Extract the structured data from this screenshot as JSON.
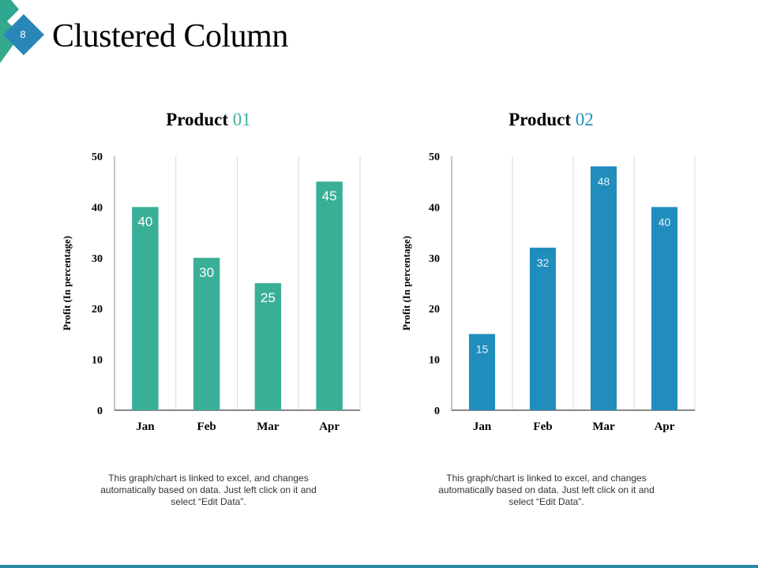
{
  "slide": {
    "number": "8",
    "title": "Clustered Column",
    "accent_colors": [
      "#35b09a",
      "#2190c0",
      "#2a8aa6"
    ]
  },
  "chart_data": [
    {
      "type": "bar",
      "title": "Product",
      "title_number": "01",
      "title_number_color": "#3fb3a1",
      "categories": [
        "Jan",
        "Feb",
        "Mar",
        "Apr"
      ],
      "values": [
        40,
        30,
        25,
        45
      ],
      "ylabel": "Profit  (In percentage)",
      "xlabel": "",
      "ylim": [
        0,
        50
      ],
      "yticks": [
        0,
        10,
        20,
        30,
        40,
        50
      ],
      "bar_color": "#3aaf98",
      "label_color": "#ffffff",
      "label_font": "sans",
      "grid": "vertical",
      "note": "This graph/chart is linked to excel, and changes automatically based on data. Just left click on it and select “Edit Data”."
    },
    {
      "type": "bar",
      "title": "Product",
      "title_number": "02",
      "title_number_color": "#2190c0",
      "categories": [
        "Jan",
        "Feb",
        "Mar",
        "Apr"
      ],
      "values": [
        15,
        32,
        48,
        40
      ],
      "ylabel": "Profit  (In percentage)",
      "xlabel": "",
      "ylim": [
        0,
        50
      ],
      "yticks": [
        0,
        10,
        20,
        30,
        40,
        50
      ],
      "bar_color": "#208dbd",
      "label_color": "#e8f3f9",
      "label_font": "sans",
      "grid": "vertical",
      "note": "This graph/chart is linked to excel, and changes automatically based on data. Just left click on it and select “Edit Data”."
    }
  ]
}
